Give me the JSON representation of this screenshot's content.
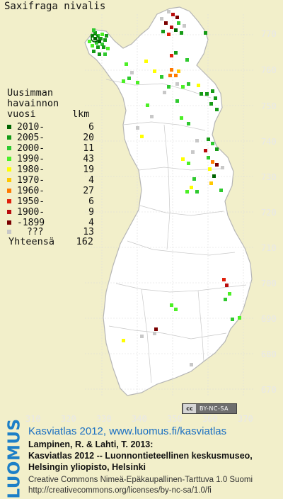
{
  "title": "Saxifraga nivalis",
  "legend": {
    "heading": [
      "Uusimman",
      "havainnon",
      "vuosi"
    ],
    "count_header": "lkm",
    "rows": [
      {
        "label": "2010-",
        "count": "6",
        "color": "#006400"
      },
      {
        "label": "2005-",
        "count": "20",
        "color": "#169b16"
      },
      {
        "label": "2000-",
        "count": "11",
        "color": "#2fc92f"
      },
      {
        "label": "1990-",
        "count": "43",
        "color": "#4cf026"
      },
      {
        "label": "1980-",
        "count": "19",
        "color": "#ffff00"
      },
      {
        "label": "1970-",
        "count": "4",
        "color": "#ffc800"
      },
      {
        "label": "1960-",
        "count": "27",
        "color": "#ff7a00"
      },
      {
        "label": "1950-",
        "count": "6",
        "color": "#e0200c"
      },
      {
        "label": "1900-",
        "count": "9",
        "color": "#b80c0c"
      },
      {
        "label": "-1899",
        "count": "4",
        "color": "#7a0000"
      },
      {
        "label": "???",
        "count": "13",
        "color": "#c8c8c8"
      }
    ],
    "total_label": "Yhteensä",
    "total": "162"
  },
  "axes": {
    "x_ticks": [
      "310",
      "320",
      "330",
      "340",
      "350",
      "360",
      "370"
    ],
    "y_ticks": [
      "770",
      "760",
      "750",
      "740",
      "730",
      "720",
      "710",
      "700",
      "690",
      "680",
      "670"
    ]
  },
  "map_colors": {
    "background": "#f2efca",
    "land": "#ffffff",
    "border": "#b5b5b5",
    "grid": "#dcdcdc"
  },
  "license_badge": {
    "icon": "cc",
    "text": "BY-NC-SA"
  },
  "brand": "LUOMUS",
  "footer": {
    "atlas_line": "Kasviatlas 2012, www.luomus.fi/kasviatlas",
    "citation1": "Lampinen, R. & Lahti, T. 2013:",
    "citation2": "Kasviatlas 2012 -- Luonnontieteellinen keskusmuseo,",
    "citation3": "Helsingin yliopisto, Helsinki",
    "license1": "Creative Commons Nimeä-Epäkaupallinen-Tarttuva 1.0 Suomi",
    "license2": "http://creativecommons.org/licenses/by-nc-sa/1.0/fi"
  }
}
